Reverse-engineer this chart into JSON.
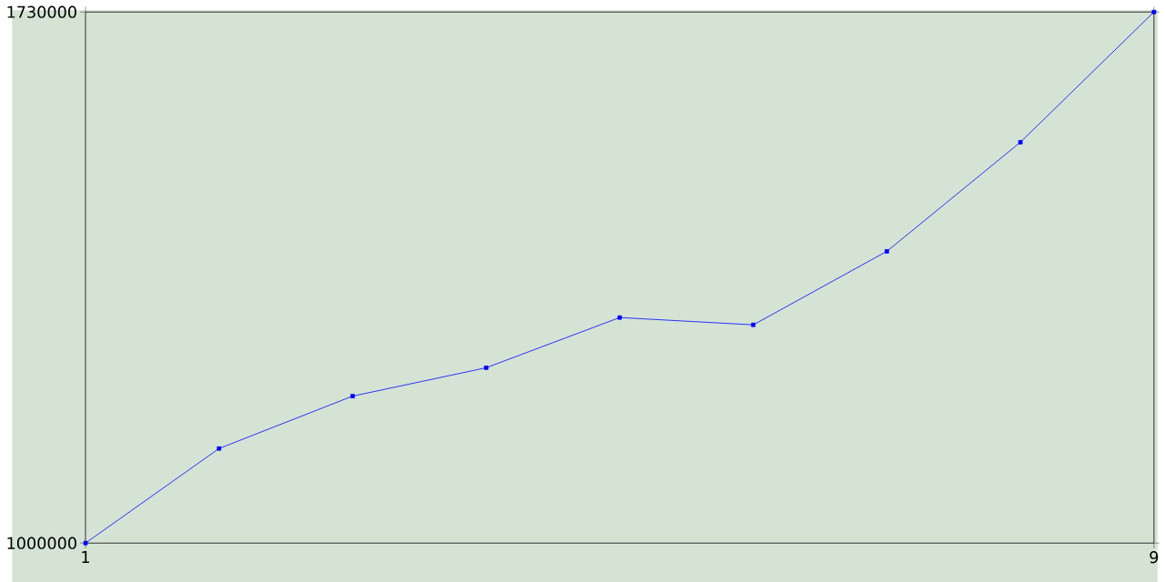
{
  "chart_data": {
    "type": "line",
    "x": [
      1,
      2,
      3,
      4,
      5,
      6,
      7,
      8,
      9
    ],
    "series": [
      {
        "color": "#0000ff",
        "values": [
          1000000,
          1130000,
          1202000,
          1241000,
          1310000,
          1300000,
          1401000,
          1551000,
          1730000
        ]
      }
    ],
    "xlim": [
      1,
      9
    ],
    "ylim": [
      1000000,
      1730000
    ],
    "xticks": [
      1,
      9
    ],
    "yticks": [
      1000000,
      1730000
    ],
    "marker": "square",
    "grid": false
  }
}
